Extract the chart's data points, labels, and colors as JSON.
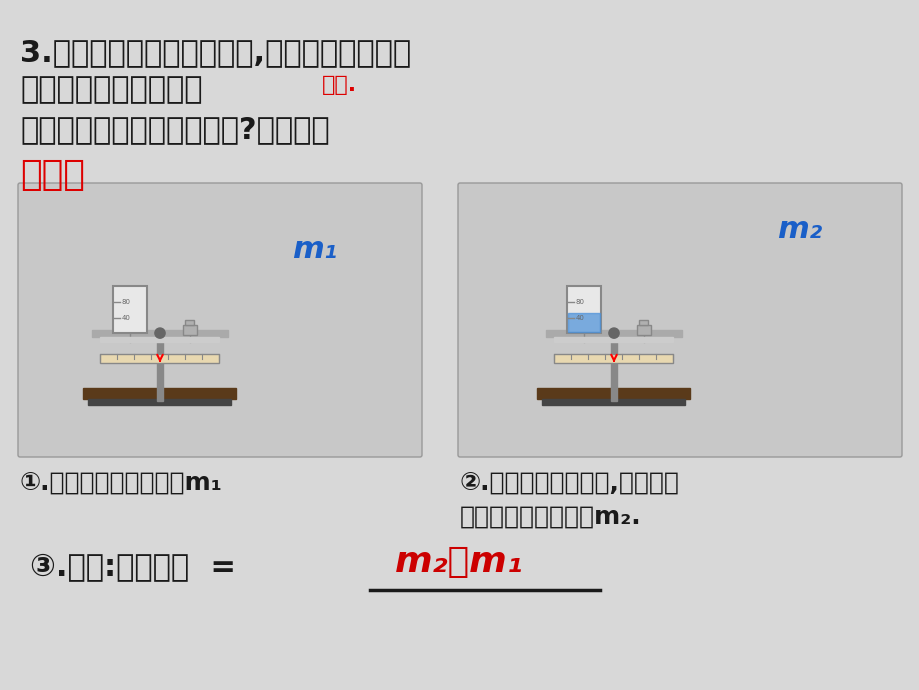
{
  "bg_color": "#d8d8d8",
  "title_line1": "3.如果要测量某液体的质量,是否可以直接将液",
  "title_line2": "体放在天平的托盘上？",
  "answer": "不能.",
  "subtitle": "下列两种测量方法哪种更好?为什么？",
  "method_label": "方法一",
  "step1": "①.称出空烧杯的质量为m₁",
  "step2_line1": "②.将液体倒入烧杯中,称出装有",
  "step2_line2": "液体的烧杯总质量为m₂.",
  "step3_prefix": "③.计算:液体质量  =  ",
  "formula": "m₂－m₁",
  "m1_label": "m₁",
  "m2_label": "m₂",
  "text_color": "#1a1a1a",
  "red_color": "#dd0000",
  "blue_color": "#1a5fc8",
  "formula_color": "#cc0000"
}
